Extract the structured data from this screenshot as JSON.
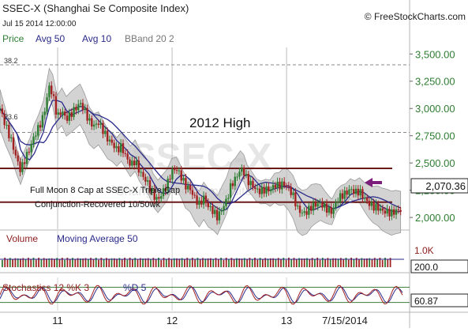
{
  "header": {
    "title": "SSEC-X (Shanghai Se Composite Index)",
    "date": "Jul 15 2014 12:00:00",
    "brand": "© FreeStockCharts.com",
    "legend": [
      {
        "label": "Price",
        "color": "#2e7d32"
      },
      {
        "label": "Avg 50",
        "color": "#2a2a8a"
      },
      {
        "label": "Avg 10",
        "color": "#2a2a8a"
      },
      {
        "label": "BBand 20 2",
        "color": "#777777"
      }
    ]
  },
  "price_panel": {
    "watermark_symbol": "SSEC-X",
    "watermark_name": "Shanghai Se Composite Index",
    "fib_labels": [
      "38.2",
      "23.6"
    ],
    "annotation_high": "2012 High",
    "annotation_note_line1": "Full Moon 8 Cap at SSEC-X Triple Cap",
    "annotation_note_line2": "Conjunction-Recovered 10/50wk",
    "last_value": "2,070.36",
    "arrow_color": "#7b1e7b"
  },
  "volume_panel": {
    "label": "Volume",
    "ma_label": "Moving Average 50",
    "axis_top": "1.0K",
    "last_value": "200.0"
  },
  "stoch_panel": {
    "label": "Stochastics 12 %K 3",
    "d_label": "%D 5",
    "last_value": "60.87"
  },
  "colors": {
    "up": "#2e7d32",
    "down": "#a32121",
    "ma": "#2a2a8a",
    "band_fill": "#c4c4c4",
    "hline": "#6b1a1a"
  },
  "chart_data": {
    "type": "candlestick",
    "y_ticks": [
      "3,500.00",
      "3,250.00",
      "3,000.00",
      "2,750.00",
      "2,500.00",
      "2,250.00",
      "2,000.00"
    ],
    "ylim": [
      1950,
      3560
    ],
    "x_ticks": [
      "11",
      "12",
      "13",
      "7/15/2014"
    ],
    "x_tick_positions": [
      1.6,
      2.6,
      3.6,
      4.53
    ],
    "xlim": [
      1.0,
      4.53
    ],
    "horizontal_lines": [
      2450,
      2140
    ],
    "dashed_lines": [
      3400,
      2780
    ],
    "price_series": [
      [
        1.0,
        3000
      ],
      [
        1.05,
        2840
      ],
      [
        1.1,
        2700
      ],
      [
        1.15,
        2520
      ],
      [
        1.18,
        2430
      ],
      [
        1.22,
        2540
      ],
      [
        1.26,
        2630
      ],
      [
        1.3,
        2750
      ],
      [
        1.34,
        2830
      ],
      [
        1.38,
        2930
      ],
      [
        1.4,
        3040
      ],
      [
        1.43,
        3200
      ],
      [
        1.46,
        3130
      ],
      [
        1.5,
        2920
      ],
      [
        1.54,
        2980
      ],
      [
        1.58,
        2900
      ],
      [
        1.62,
        2950
      ],
      [
        1.66,
        3000
      ],
      [
        1.7,
        3050
      ],
      [
        1.74,
        2980
      ],
      [
        1.78,
        2880
      ],
      [
        1.82,
        2840
      ],
      [
        1.86,
        2870
      ],
      [
        1.9,
        2800
      ],
      [
        1.94,
        2720
      ],
      [
        1.98,
        2680
      ],
      [
        2.02,
        2620
      ],
      [
        2.06,
        2650
      ],
      [
        2.1,
        2560
      ],
      [
        2.14,
        2480
      ],
      [
        2.18,
        2520
      ],
      [
        2.22,
        2420
      ],
      [
        2.26,
        2360
      ],
      [
        2.3,
        2300
      ],
      [
        2.34,
        2200
      ],
      [
        2.38,
        2160
      ],
      [
        2.42,
        2230
      ],
      [
        2.46,
        2300
      ],
      [
        2.5,
        2420
      ],
      [
        2.54,
        2450
      ],
      [
        2.58,
        2380
      ],
      [
        2.62,
        2290
      ],
      [
        2.66,
        2260
      ],
      [
        2.7,
        2180
      ],
      [
        2.74,
        2120
      ],
      [
        2.78,
        2180
      ],
      [
        2.82,
        2100
      ],
      [
        2.86,
        2060
      ],
      [
        2.9,
        2000
      ],
      [
        2.94,
        2080
      ],
      [
        2.98,
        2160
      ],
      [
        3.02,
        2300
      ],
      [
        3.06,
        2360
      ],
      [
        3.1,
        2440
      ],
      [
        3.13,
        2420
      ],
      [
        3.16,
        2340
      ],
      [
        3.2,
        2300
      ],
      [
        3.24,
        2250
      ],
      [
        3.28,
        2240
      ],
      [
        3.32,
        2260
      ],
      [
        3.36,
        2250
      ],
      [
        3.4,
        2300
      ],
      [
        3.44,
        2290
      ],
      [
        3.48,
        2310
      ],
      [
        3.52,
        2270
      ],
      [
        3.56,
        2200
      ],
      [
        3.6,
        2080
      ],
      [
        3.64,
        2040
      ],
      [
        3.68,
        2050
      ],
      [
        3.72,
        2100
      ],
      [
        3.76,
        2120
      ],
      [
        3.8,
        2130
      ],
      [
        3.84,
        2090
      ],
      [
        3.88,
        2060
      ],
      [
        3.9,
        2050
      ],
      [
        3.94,
        2150
      ],
      [
        3.98,
        2200
      ],
      [
        4.02,
        2220
      ],
      [
        4.06,
        2260
      ],
      [
        4.1,
        2230
      ],
      [
        4.14,
        2240
      ],
      [
        4.18,
        2180
      ],
      [
        4.22,
        2130
      ],
      [
        4.26,
        2100
      ],
      [
        4.3,
        2090
      ],
      [
        4.34,
        2060
      ],
      [
        4.38,
        2050
      ],
      [
        4.42,
        2040
      ],
      [
        4.46,
        2060
      ],
      [
        4.5,
        2070
      ]
    ],
    "volume_note": "volume bars fill the lower panel with a moving average 50 overlay",
    "stochastics_range": [
      0,
      100
    ],
    "stochastics_levels": [
      80,
      20
    ]
  }
}
